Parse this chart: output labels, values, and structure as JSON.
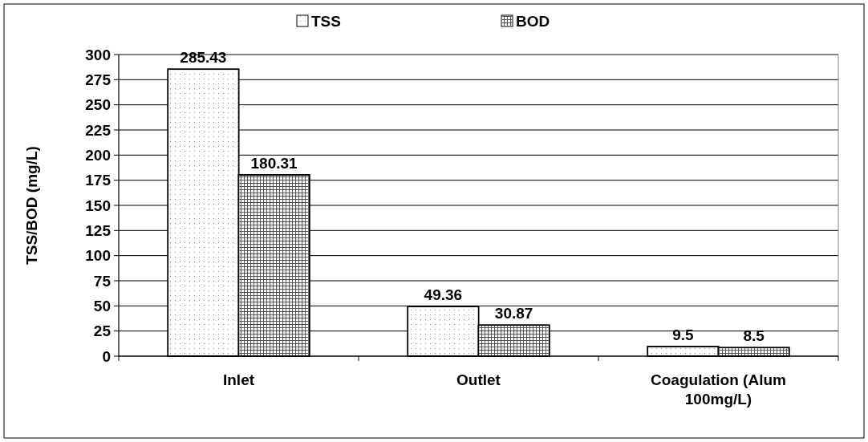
{
  "chart_data": {
    "type": "bar",
    "ylabel": "TSS/BOD (mg/L)",
    "categories": [
      "Inlet",
      "Outlet",
      "Coagulation (Alum 100mg/L)"
    ],
    "series": [
      {
        "name": "TSS",
        "color": "#ffffff",
        "values": [
          285.43,
          49.36,
          9.5
        ]
      },
      {
        "name": "BOD",
        "color": "#ffffff",
        "values": [
          180.31,
          30.87,
          8.5
        ]
      }
    ],
    "ylim": [
      0,
      300
    ],
    "yticks": [
      0,
      25,
      50,
      75,
      100,
      125,
      150,
      175,
      200,
      225,
      250,
      275,
      300
    ],
    "grid": "y",
    "legend": "top",
    "data_labels": true
  }
}
